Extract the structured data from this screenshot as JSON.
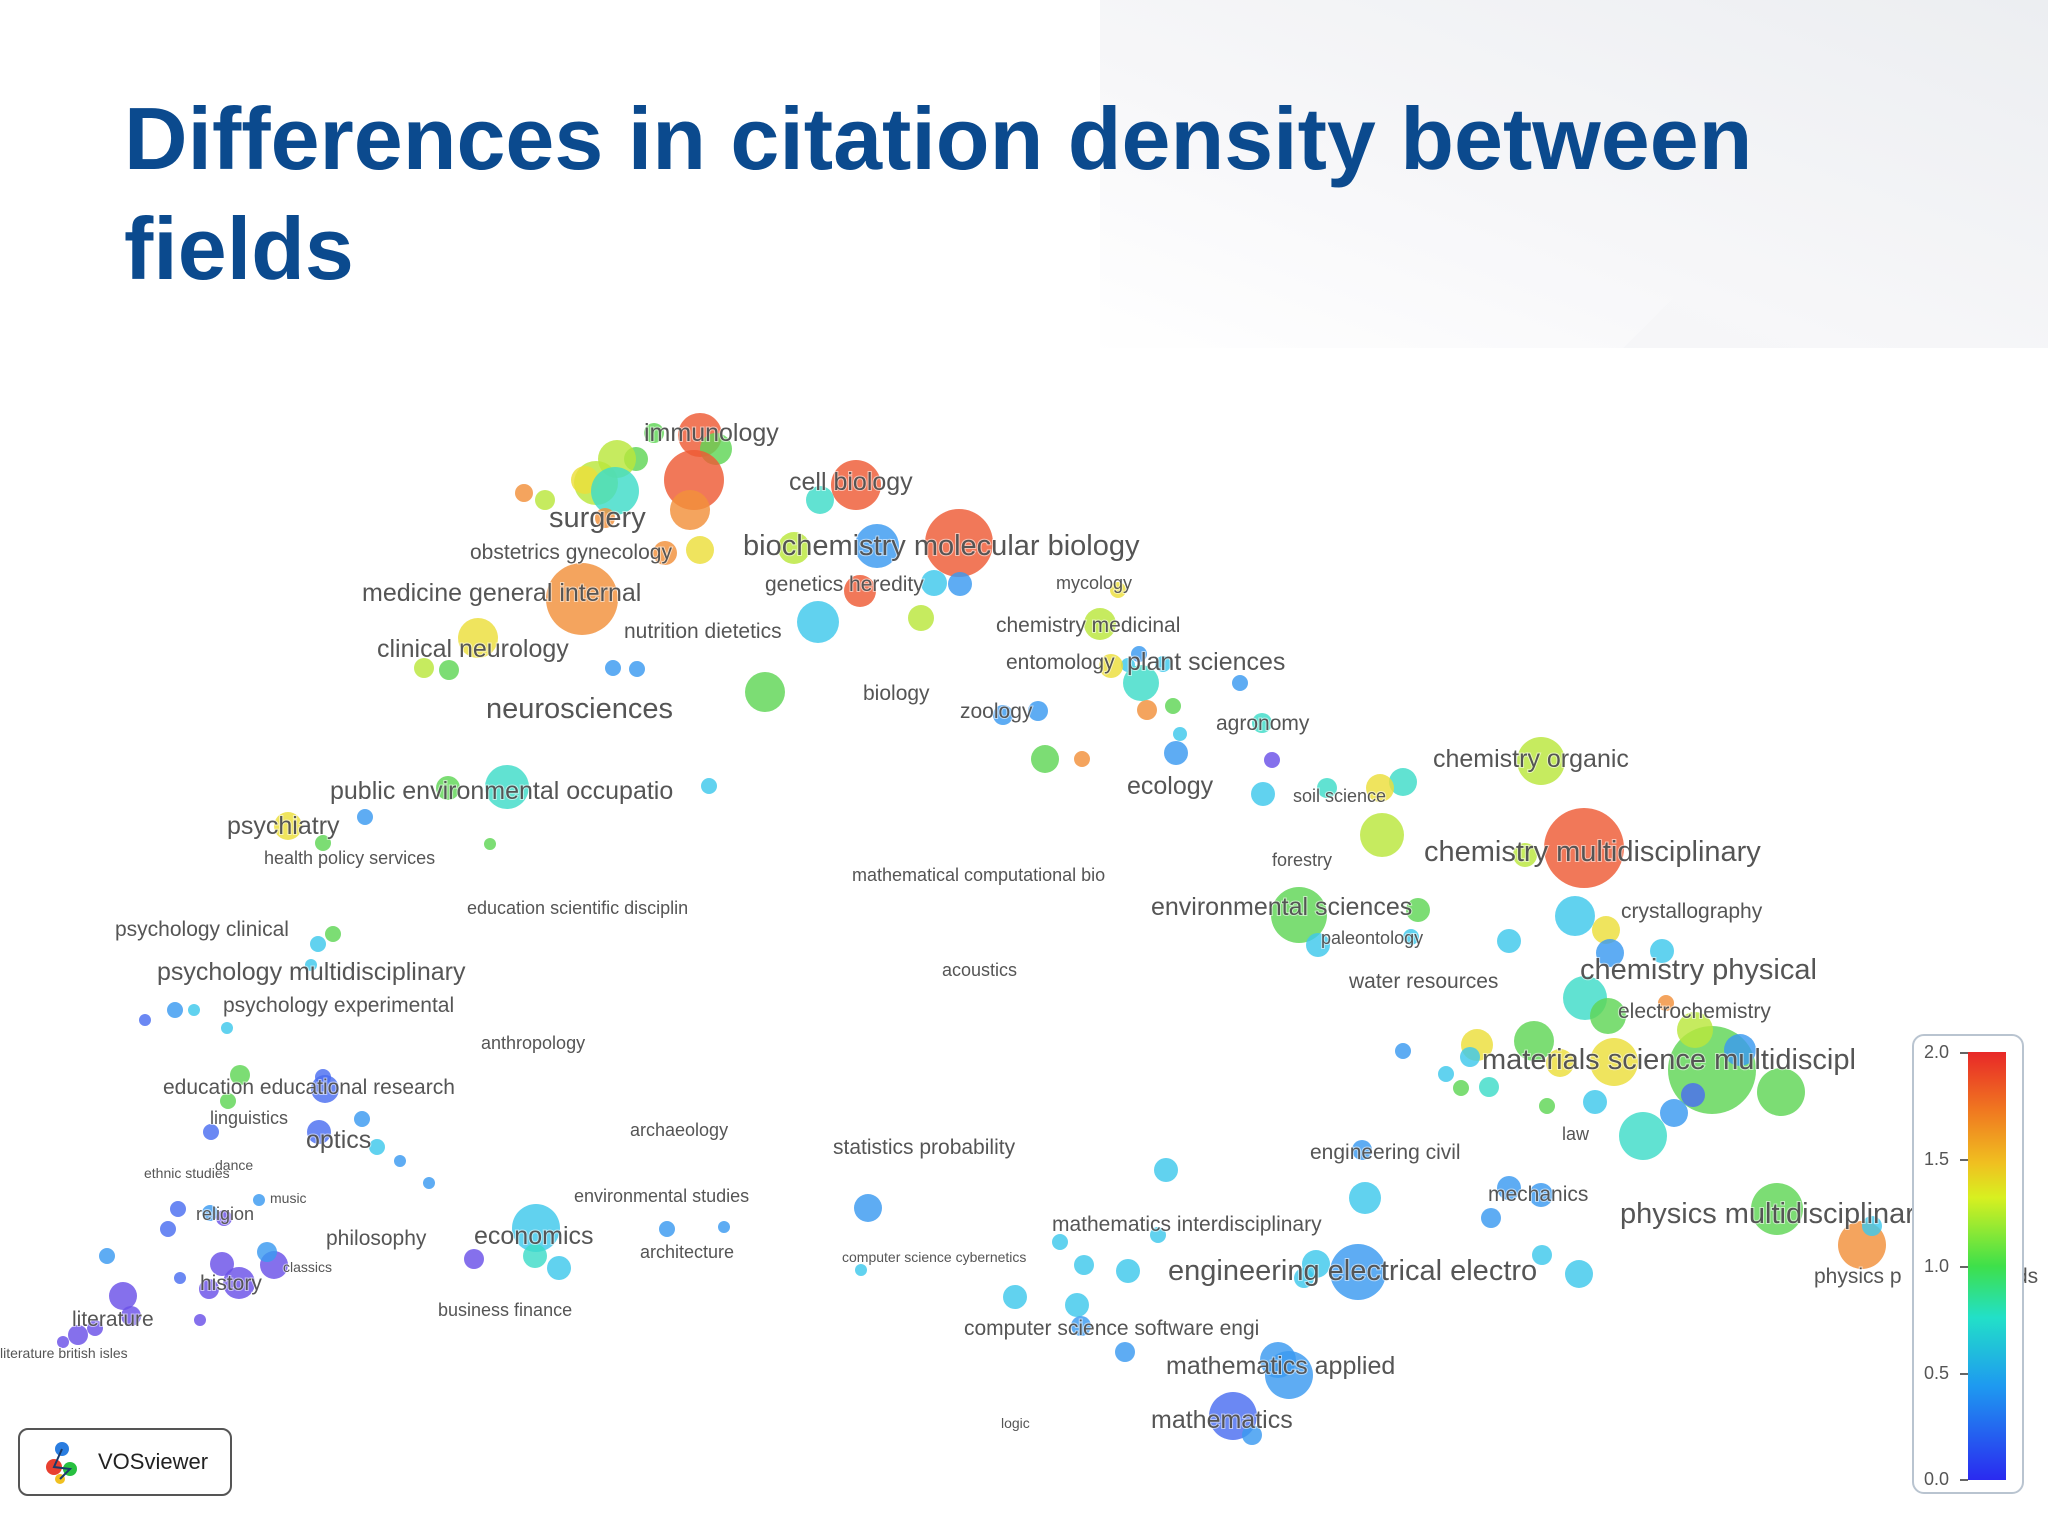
{
  "slide": {
    "title": "Differences in citation density between fields"
  },
  "map": {
    "labels": [
      {
        "text": "immunology",
        "size": "m"
      },
      {
        "text": "cell biology",
        "size": "m"
      },
      {
        "text": "surgery",
        "size": "l"
      },
      {
        "text": "obstetrics gynecology",
        "size": "s"
      },
      {
        "text": "biochemistry molecular biology",
        "size": "l"
      },
      {
        "text": "medicine general internal",
        "size": "m"
      },
      {
        "text": "genetics heredity",
        "size": "s"
      },
      {
        "text": "mycology",
        "size": "xs"
      },
      {
        "text": "nutrition dietetics",
        "size": "s"
      },
      {
        "text": "clinical neurology",
        "size": "m"
      },
      {
        "text": "chemistry medicinal",
        "size": "s"
      },
      {
        "text": "entomology",
        "size": "s"
      },
      {
        "text": "plant sciences",
        "size": "m"
      },
      {
        "text": "biology",
        "size": "s"
      },
      {
        "text": "zoology",
        "size": "s"
      },
      {
        "text": "neurosciences",
        "size": "l"
      },
      {
        "text": "agronomy",
        "size": "s"
      },
      {
        "text": "chemistry organic",
        "size": "m"
      },
      {
        "text": "public environmental occupatio",
        "size": "m"
      },
      {
        "text": "ecology",
        "size": "m"
      },
      {
        "text": "soil science",
        "size": "xs"
      },
      {
        "text": "psychiatry",
        "size": "m"
      },
      {
        "text": "health policy services",
        "size": "xs"
      },
      {
        "text": "forestry",
        "size": "xs"
      },
      {
        "text": "chemistry multidisciplinary",
        "size": "l"
      },
      {
        "text": "mathematical computational bio",
        "size": "xs"
      },
      {
        "text": "education scientific disciplin",
        "size": "xs"
      },
      {
        "text": "environmental sciences",
        "size": "m"
      },
      {
        "text": "crystallography",
        "size": "s"
      },
      {
        "text": "psychology clinical",
        "size": "s"
      },
      {
        "text": "paleontology",
        "size": "xs"
      },
      {
        "text": "psychology multidisciplinary",
        "size": "m"
      },
      {
        "text": "acoustics",
        "size": "xs"
      },
      {
        "text": "chemistry physical",
        "size": "l"
      },
      {
        "text": "water resources",
        "size": "s"
      },
      {
        "text": "psychology experimental",
        "size": "s"
      },
      {
        "text": "electrochemistry",
        "size": "s"
      },
      {
        "text": "anthropology",
        "size": "xs"
      },
      {
        "text": "materials science multidiscipl",
        "size": "l"
      },
      {
        "text": "education educational research",
        "size": "s"
      },
      {
        "text": "linguistics",
        "size": "xs"
      },
      {
        "text": "optics",
        "size": "m"
      },
      {
        "text": "law",
        "size": "xs"
      },
      {
        "text": "archaeology",
        "size": "xs"
      },
      {
        "text": "statistics probability",
        "size": "s"
      },
      {
        "text": "engineering civil",
        "size": "s"
      },
      {
        "text": "ethnic studies",
        "size": "xxs"
      },
      {
        "text": "dance",
        "size": "xxs"
      },
      {
        "text": "environmental studies",
        "size": "xs"
      },
      {
        "text": "music",
        "size": "xxs"
      },
      {
        "text": "mechanics",
        "size": "s"
      },
      {
        "text": "religion",
        "size": "xs"
      },
      {
        "text": "physics multidisciplinary",
        "size": "l"
      },
      {
        "text": "mathematics interdisciplinary",
        "size": "s"
      },
      {
        "text": "philosophy",
        "size": "s"
      },
      {
        "text": "economics",
        "size": "m"
      },
      {
        "text": "architecture",
        "size": "xs"
      },
      {
        "text": "computer science cybernetics",
        "size": "xxs"
      },
      {
        "text": "engineering electrical electro",
        "size": "l"
      },
      {
        "text": "classics",
        "size": "xxs"
      },
      {
        "text": "history",
        "size": "s"
      },
      {
        "text": "physics p",
        "size": "s"
      },
      {
        "text": "literature",
        "size": "s"
      },
      {
        "text": "business finance",
        "size": "xs"
      },
      {
        "text": "computer science software engi",
        "size": "s"
      },
      {
        "text": "literature british isles",
        "size": "xxs"
      },
      {
        "text": "mathematics applied",
        "size": "m"
      },
      {
        "text": "logic",
        "size": "xxs"
      },
      {
        "text": "mathematics",
        "size": "m"
      },
      {
        "text": "ds",
        "size": "s"
      }
    ]
  },
  "logo": {
    "text": "VOSviewer",
    "icon": "vosviewer-logo-icon"
  },
  "color_scale": {
    "ticks": [
      "2.0",
      "1.5",
      "1.0",
      "0.5",
      "0.0"
    ],
    "colors": [
      "#e82828",
      "#f07a20",
      "#d8f020",
      "#3ee04a",
      "#22e0c8",
      "#1e9af0",
      "#2a2af0"
    ]
  }
}
